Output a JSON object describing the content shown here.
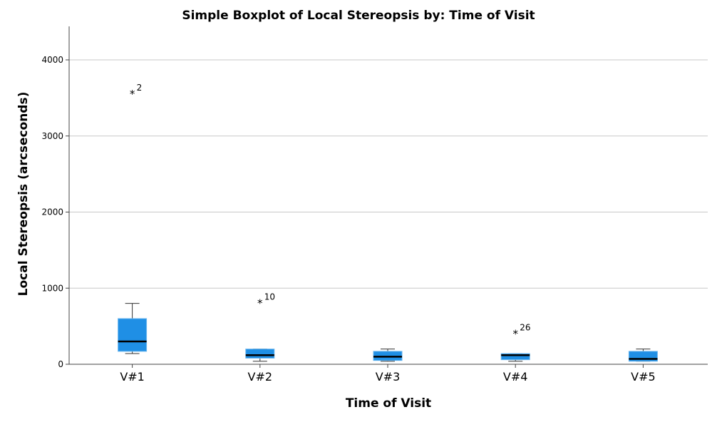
{
  "chart_data": {
    "type": "boxplot",
    "title": "Simple Boxplot of Local Stereopsis by: Time of Visit",
    "xlabel": "Time of Visit",
    "ylabel": "Local Stereopsis (arcseconds)",
    "ylim": [
      0,
      4400
    ],
    "yticks": [
      "0",
      "1000",
      "2000",
      "3000",
      "4000"
    ],
    "ytick_values": [
      0,
      1000,
      2000,
      3000,
      4000
    ],
    "grid": true,
    "box_color": "#1F8FE5",
    "categories": [
      "V#1",
      "V#2",
      "V#3",
      "V#4",
      "V#5"
    ],
    "boxes": [
      {
        "label": "V#1",
        "min": 140,
        "q1": 170,
        "median": 300,
        "q3": 600,
        "max": 800
      },
      {
        "label": "V#2",
        "min": 40,
        "q1": 80,
        "median": 120,
        "q3": 200,
        "max": 200
      },
      {
        "label": "V#3",
        "min": 40,
        "q1": 50,
        "median": 100,
        "q3": 170,
        "max": 200
      },
      {
        "label": "V#4",
        "min": 40,
        "q1": 60,
        "median": 120,
        "q3": 140,
        "max": 140
      },
      {
        "label": "V#5",
        "min": 40,
        "q1": 40,
        "median": 70,
        "q3": 170,
        "max": 200
      }
    ],
    "outliers": [
      {
        "category": "V#1",
        "value": 3550,
        "label": "2"
      },
      {
        "category": "V#2",
        "value": 800,
        "label": "10"
      },
      {
        "category": "V#4",
        "value": 400,
        "label": "26"
      }
    ]
  }
}
